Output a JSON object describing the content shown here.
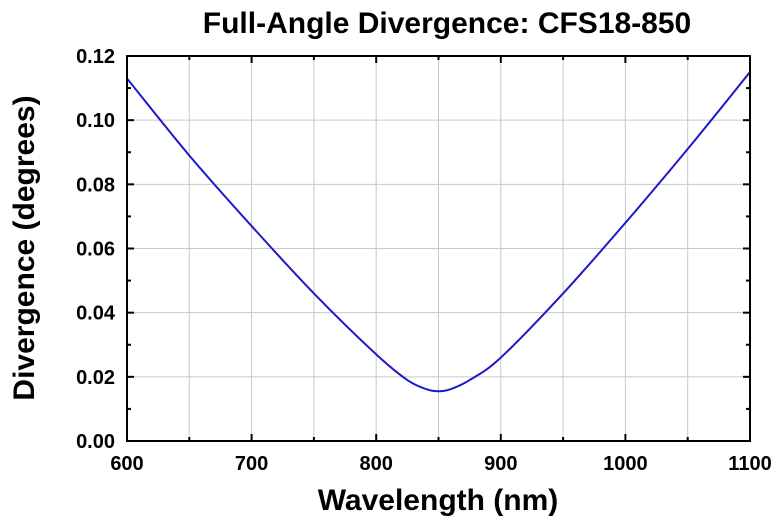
{
  "chart_data": {
    "type": "line",
    "title": "Full-Angle Divergence: CFS18-850",
    "xlabel": "Wavelength (nm)",
    "ylabel": "Divergence (degrees)",
    "xlim": [
      600,
      1100
    ],
    "ylim": [
      0.0,
      0.12
    ],
    "x_ticks": [
      "600",
      "700",
      "800",
      "900",
      "1000",
      "1100"
    ],
    "y_ticks": [
      "0.00",
      "0.02",
      "0.04",
      "0.06",
      "0.08",
      "0.10",
      "0.12"
    ],
    "x_tick_values": [
      600,
      700,
      800,
      900,
      1000,
      1100
    ],
    "y_tick_values": [
      0.0,
      0.02,
      0.04,
      0.06,
      0.08,
      0.1,
      0.12
    ],
    "grid": true,
    "series": [
      {
        "color": "#1a1acc",
        "x": [
          600,
          650,
          700,
          750,
          800,
          825,
          840,
          850,
          860,
          875,
          900,
          950,
          1000,
          1050,
          1100
        ],
        "y": [
          0.113,
          0.089,
          0.067,
          0.046,
          0.027,
          0.019,
          0.0162,
          0.0155,
          0.0162,
          0.019,
          0.026,
          0.046,
          0.068,
          0.091,
          0.115
        ]
      }
    ]
  }
}
